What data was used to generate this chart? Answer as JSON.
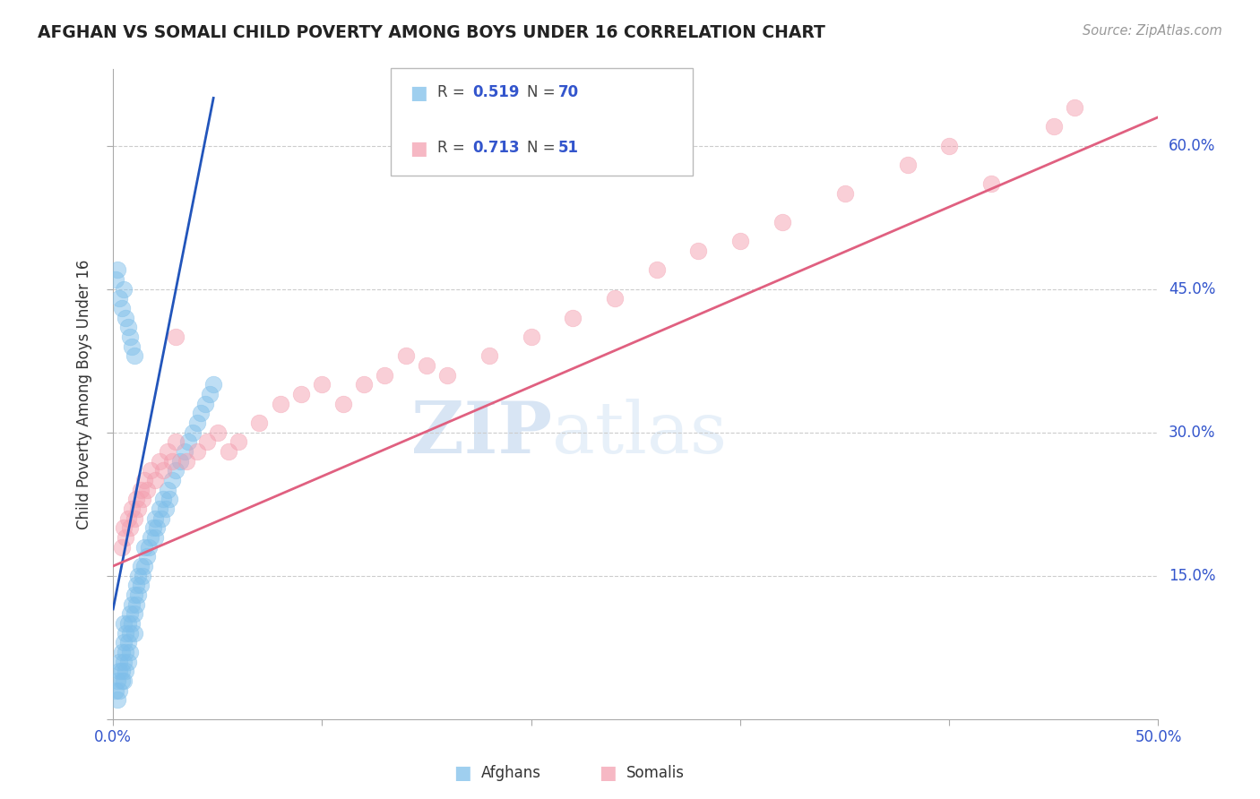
{
  "title": "AFGHAN VS SOMALI CHILD POVERTY AMONG BOYS UNDER 16 CORRELATION CHART",
  "source": "Source: ZipAtlas.com",
  "ylabel": "Child Poverty Among Boys Under 16",
  "xlim": [
    0.0,
    0.5
  ],
  "ylim": [
    0.0,
    0.68
  ],
  "afghan_R": 0.519,
  "afghan_N": 70,
  "somali_R": 0.713,
  "somali_N": 51,
  "afghan_color": "#7fbfea",
  "somali_color": "#f4a0b0",
  "afghan_line_color": "#2255bb",
  "somali_line_color": "#e06080",
  "watermark_color": "#d0dff0",
  "background_color": "#ffffff",
  "grid_color": "#cccccc",
  "axis_label_color": "#3355cc",
  "tick_label_color": "#3355cc",
  "afghan_x": [
    0.001,
    0.002,
    0.002,
    0.003,
    0.003,
    0.003,
    0.004,
    0.004,
    0.004,
    0.005,
    0.005,
    0.005,
    0.005,
    0.006,
    0.006,
    0.006,
    0.007,
    0.007,
    0.007,
    0.008,
    0.008,
    0.008,
    0.009,
    0.009,
    0.01,
    0.01,
    0.01,
    0.011,
    0.011,
    0.012,
    0.012,
    0.013,
    0.013,
    0.014,
    0.015,
    0.015,
    0.016,
    0.017,
    0.018,
    0.019,
    0.02,
    0.02,
    0.021,
    0.022,
    0.023,
    0.024,
    0.025,
    0.026,
    0.027,
    0.028,
    0.03,
    0.032,
    0.034,
    0.036,
    0.038,
    0.04,
    0.042,
    0.044,
    0.046,
    0.048,
    0.001,
    0.002,
    0.003,
    0.004,
    0.005,
    0.006,
    0.007,
    0.008,
    0.009,
    0.01
  ],
  "afghan_y": [
    0.03,
    0.04,
    0.02,
    0.05,
    0.03,
    0.06,
    0.04,
    0.07,
    0.05,
    0.06,
    0.08,
    0.04,
    0.1,
    0.07,
    0.09,
    0.05,
    0.08,
    0.1,
    0.06,
    0.09,
    0.11,
    0.07,
    0.1,
    0.12,
    0.11,
    0.13,
    0.09,
    0.12,
    0.14,
    0.13,
    0.15,
    0.14,
    0.16,
    0.15,
    0.16,
    0.18,
    0.17,
    0.18,
    0.19,
    0.2,
    0.19,
    0.21,
    0.2,
    0.22,
    0.21,
    0.23,
    0.22,
    0.24,
    0.23,
    0.25,
    0.26,
    0.27,
    0.28,
    0.29,
    0.3,
    0.31,
    0.32,
    0.33,
    0.34,
    0.35,
    0.46,
    0.47,
    0.44,
    0.43,
    0.45,
    0.42,
    0.41,
    0.4,
    0.39,
    0.38
  ],
  "somali_x": [
    0.004,
    0.005,
    0.006,
    0.007,
    0.008,
    0.009,
    0.01,
    0.011,
    0.012,
    0.013,
    0.014,
    0.015,
    0.016,
    0.018,
    0.02,
    0.022,
    0.024,
    0.026,
    0.028,
    0.03,
    0.035,
    0.04,
    0.045,
    0.05,
    0.055,
    0.06,
    0.07,
    0.08,
    0.09,
    0.1,
    0.11,
    0.12,
    0.13,
    0.14,
    0.15,
    0.16,
    0.18,
    0.2,
    0.22,
    0.24,
    0.26,
    0.28,
    0.3,
    0.32,
    0.35,
    0.38,
    0.4,
    0.42,
    0.45,
    0.46,
    0.03
  ],
  "somali_y": [
    0.18,
    0.2,
    0.19,
    0.21,
    0.2,
    0.22,
    0.21,
    0.23,
    0.22,
    0.24,
    0.23,
    0.25,
    0.24,
    0.26,
    0.25,
    0.27,
    0.26,
    0.28,
    0.27,
    0.29,
    0.27,
    0.28,
    0.29,
    0.3,
    0.28,
    0.29,
    0.31,
    0.33,
    0.34,
    0.35,
    0.33,
    0.35,
    0.36,
    0.38,
    0.37,
    0.36,
    0.38,
    0.4,
    0.42,
    0.44,
    0.47,
    0.49,
    0.5,
    0.52,
    0.55,
    0.58,
    0.6,
    0.56,
    0.62,
    0.64,
    0.4
  ],
  "afghan_line_x": [
    0.0,
    0.048
  ],
  "afghan_line_y": [
    0.115,
    0.65
  ],
  "somali_line_x": [
    0.0,
    0.5
  ],
  "somali_line_y": [
    0.16,
    0.63
  ]
}
